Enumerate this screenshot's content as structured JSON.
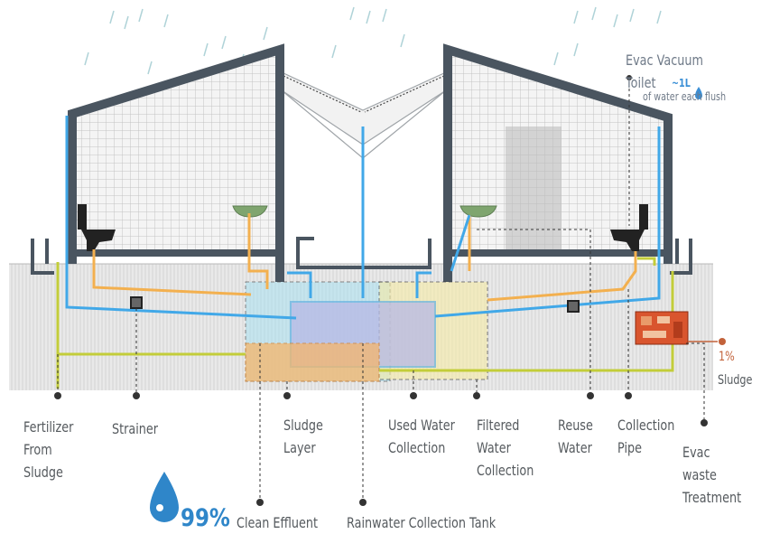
{
  "annotations": {
    "evac_toilet": "Evac Vacuum Toilet",
    "liter": "~1L",
    "per_flush": "of water each flush",
    "sludge_pct": "1%",
    "sludge": "Sludge"
  },
  "labels": {
    "fertilizer": "Fertilizer\nFrom\nSludge",
    "strainer": "Strainer",
    "sludge_layer": "Sludge\nLayer",
    "used_water": "Used Water\nCollection",
    "filtered_water": "Filtered\nWater\nCollection",
    "reuse_water": "Reuse\nWater",
    "collection_pipe": "Collection\nPipe",
    "evac_waste": "Evac waste\nTreatment"
  },
  "bottom": {
    "clean_pct": "99%",
    "clean_effluent": "Clean Effluent",
    "rainwater_tank": "Rainwater Collection Tank"
  },
  "colors": {
    "structure": "#4a5560",
    "blue_pipe": "#41a8e8",
    "orange_pipe": "#f3b04f",
    "green_pipe": "#c3cd3a",
    "ground": "#e6e6e6",
    "treatment": "#d9552e",
    "leader": "#333333"
  }
}
